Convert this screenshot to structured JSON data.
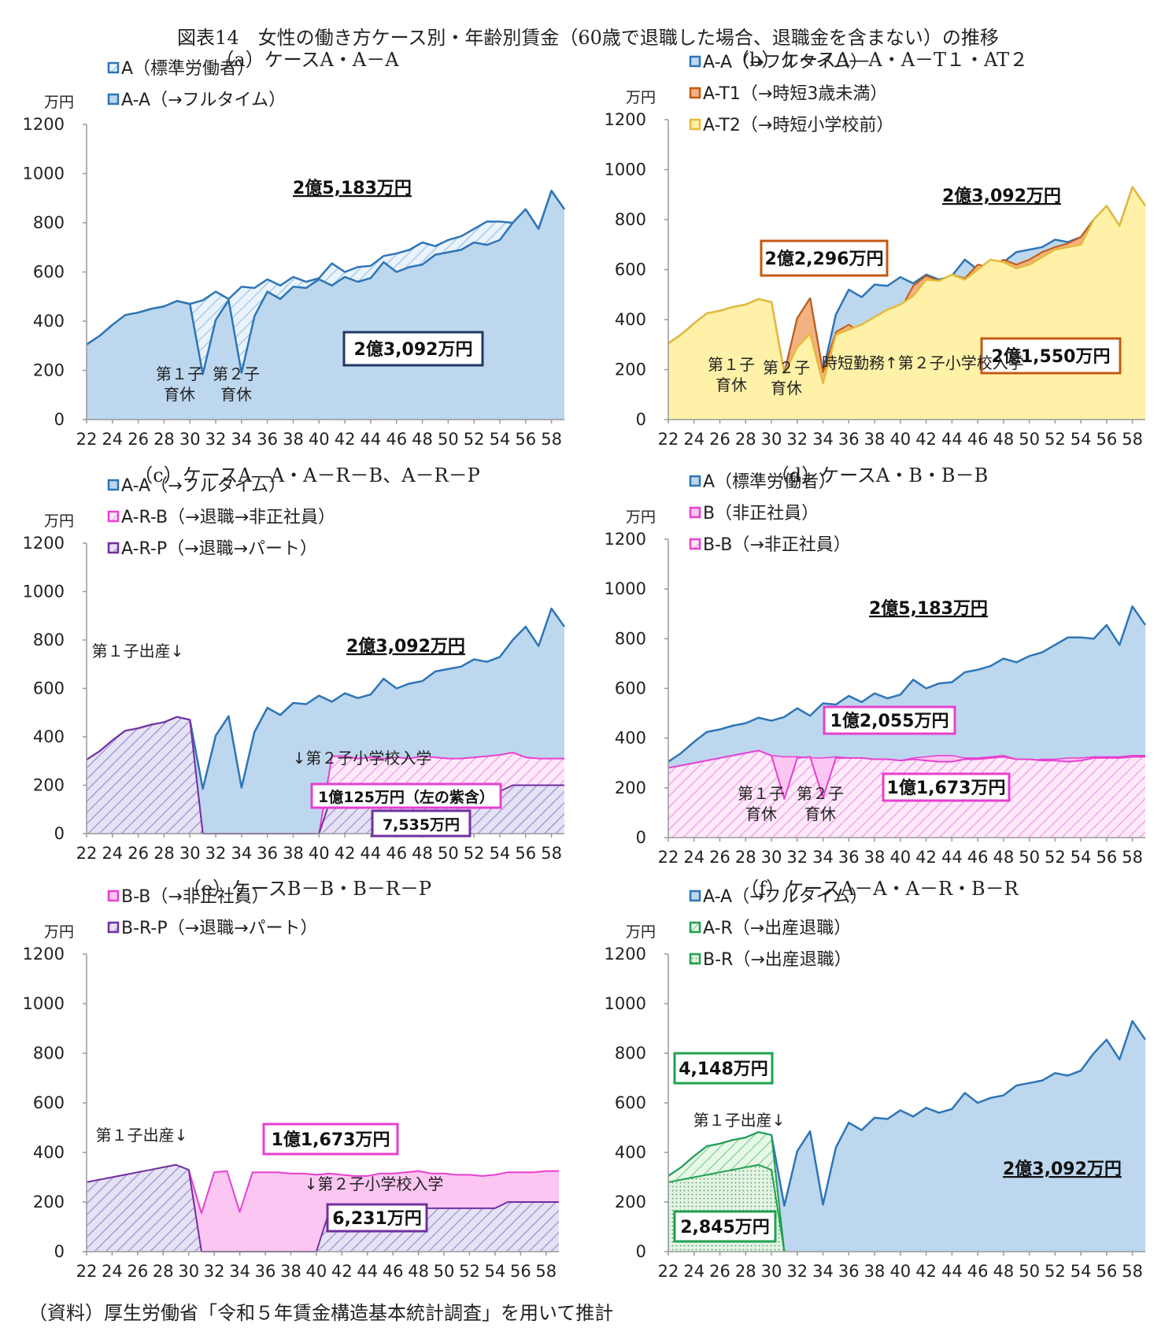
{
  "figure_title": "図表14　女性の働き方ケース別・年齢別賃金（60歳で退職した場合、退職金を含まない）の推移",
  "source": "（資料）厚生労働省「令和５年賃金構造基本統計調査」を用いて推計",
  "colors": {
    "blue": "#2E75B6",
    "light_blue": "#BDD7EE",
    "orange": "#F4B183",
    "orange_dark": "#C55A11",
    "yellow": "#FFF2A8",
    "yellow_line": "#E6B93C",
    "magenta": "#E83FD0",
    "pink": "#FBC6F2",
    "purple": "#7030A0",
    "lavender": "#C9C3E6",
    "green": "#21A050",
    "light_green": "#C8EEC8",
    "navy": "#1F3864"
  },
  "chart_data": [
    {
      "panel_title": "（a）ケースA・A－A",
      "type": "area",
      "unit_label": "万円",
      "ylim": [
        0,
        1200
      ],
      "yticks": [
        0,
        200,
        400,
        600,
        800,
        1000,
        1200
      ],
      "x": [
        22,
        23,
        24,
        25,
        26,
        27,
        28,
        29,
        30,
        31,
        32,
        33,
        34,
        35,
        36,
        37,
        38,
        39,
        40,
        41,
        42,
        43,
        44,
        45,
        46,
        47,
        48,
        49,
        50,
        51,
        52,
        53,
        54,
        55,
        56,
        57,
        58,
        59
      ],
      "xticks": [
        22,
        24,
        26,
        28,
        30,
        32,
        34,
        36,
        38,
        40,
        42,
        44,
        46,
        48,
        50,
        52,
        54,
        56,
        58
      ],
      "legend": [
        "A（標準労働者）",
        "A-A（→フルタイム）"
      ],
      "series": [
        {
          "name": "A（標準労働者）",
          "values": [
            305,
            340,
            385,
            425,
            435,
            450,
            460,
            482,
            470,
            485,
            520,
            490,
            540,
            535,
            570,
            545,
            580,
            560,
            575,
            635,
            600,
            620,
            625,
            665,
            675,
            690,
            720,
            705,
            730,
            745,
            775,
            805,
            805,
            800,
            855,
            775,
            930,
            855
          ]
        },
        {
          "name": "A-A（→フルタイム）",
          "values": [
            305,
            340,
            385,
            425,
            435,
            450,
            460,
            482,
            470,
            185,
            405,
            485,
            190,
            420,
            520,
            490,
            540,
            535,
            570,
            545,
            580,
            560,
            575,
            640,
            600,
            620,
            630,
            670,
            680,
            690,
            720,
            710,
            730,
            800,
            855,
            775,
            930,
            855
          ]
        }
      ],
      "annotations": [
        "2億5,183万円",
        "2億3,092万円",
        "第１子",
        "育休",
        "第２子",
        "育休"
      ]
    },
    {
      "panel_title": "（b）ケースA―A・A－T１・AT２",
      "type": "area",
      "unit_label": "万円",
      "ylim": [
        0,
        1200
      ],
      "yticks": [
        0,
        200,
        400,
        600,
        800,
        1000,
        1200
      ],
      "x": [
        22,
        23,
        24,
        25,
        26,
        27,
        28,
        29,
        30,
        31,
        32,
        33,
        34,
        35,
        36,
        37,
        38,
        39,
        40,
        41,
        42,
        43,
        44,
        45,
        46,
        47,
        48,
        49,
        50,
        51,
        52,
        53,
        54,
        55,
        56,
        57,
        58,
        59
      ],
      "xticks": [
        22,
        24,
        26,
        28,
        30,
        32,
        34,
        36,
        38,
        40,
        42,
        44,
        46,
        48,
        50,
        52,
        54,
        56,
        58
      ],
      "legend": [
        "A-A（→フルタイム）",
        "A-T1（→時短3歳未満）",
        "A-T2（→時短小学校前）"
      ],
      "series": [
        {
          "name": "A-A（→フルタイム）",
          "values": [
            305,
            340,
            385,
            425,
            435,
            450,
            460,
            482,
            470,
            185,
            405,
            485,
            190,
            420,
            520,
            490,
            540,
            535,
            570,
            545,
            580,
            560,
            575,
            640,
            600,
            620,
            630,
            670,
            680,
            690,
            720,
            710,
            730,
            800,
            855,
            775,
            930,
            855
          ]
        },
        {
          "name": "A-T1（→時短3歳未満）",
          "values": [
            305,
            340,
            385,
            425,
            435,
            450,
            460,
            482,
            470,
            185,
            405,
            485,
            190,
            350,
            380,
            345,
            375,
            395,
            440,
            535,
            575,
            555,
            580,
            565,
            620,
            610,
            640,
            620,
            640,
            670,
            690,
            705,
            730,
            800,
            855,
            775,
            930,
            855
          ]
        },
        {
          "name": "A-T2（→時短小学校前）",
          "values": [
            305,
            340,
            385,
            425,
            435,
            450,
            460,
            482,
            470,
            185,
            290,
            345,
            145,
            340,
            360,
            380,
            410,
            440,
            460,
            495,
            560,
            555,
            580,
            560,
            600,
            640,
            630,
            605,
            620,
            650,
            680,
            690,
            700,
            800,
            855,
            775,
            930,
            855
          ]
        }
      ],
      "annotations": [
        "2億3,092万円",
        "2億2,296万円",
        "2億1,550万円",
        "第１子",
        "育休",
        "第２子",
        "育休",
        "時短勤務↑第２子小学校入学"
      ]
    },
    {
      "panel_title": "（c）ケースA―A・A－R－B、A－R－P",
      "type": "area",
      "unit_label": "万円",
      "ylim": [
        0,
        1200
      ],
      "yticks": [
        0,
        200,
        400,
        600,
        800,
        1000,
        1200
      ],
      "x": [
        22,
        23,
        24,
        25,
        26,
        27,
        28,
        29,
        30,
        31,
        32,
        33,
        34,
        35,
        36,
        37,
        38,
        39,
        40,
        41,
        42,
        43,
        44,
        45,
        46,
        47,
        48,
        49,
        50,
        51,
        52,
        53,
        54,
        55,
        56,
        57,
        58,
        59
      ],
      "xticks": [
        22,
        24,
        26,
        28,
        30,
        32,
        34,
        36,
        38,
        40,
        42,
        44,
        46,
        48,
        50,
        52,
        54,
        56,
        58
      ],
      "legend": [
        "A-A（→フルタイム）",
        "A-R-B（→退職→非正社員）",
        "A-R-P（→退職→パート）"
      ],
      "series": [
        {
          "name": "A-A（→フルタイム）",
          "values": [
            305,
            340,
            385,
            425,
            435,
            450,
            460,
            482,
            470,
            185,
            405,
            485,
            190,
            420,
            520,
            490,
            540,
            535,
            570,
            545,
            580,
            560,
            575,
            640,
            600,
            620,
            630,
            670,
            680,
            690,
            720,
            710,
            730,
            800,
            855,
            775,
            930,
            855
          ]
        },
        {
          "name": "A-R-B（→退職→非正社員）",
          "values": [
            305,
            340,
            385,
            425,
            435,
            450,
            460,
            482,
            470,
            0,
            0,
            0,
            0,
            0,
            0,
            0,
            0,
            0,
            0,
            320,
            320,
            310,
            315,
            310,
            315,
            310,
            320,
            315,
            310,
            310,
            315,
            320,
            325,
            335,
            315,
            310,
            310,
            310
          ]
        },
        {
          "name": "A-R-P（→退職→パート）",
          "values": [
            305,
            340,
            385,
            425,
            435,
            450,
            460,
            482,
            470,
            0,
            0,
            0,
            0,
            0,
            0,
            0,
            0,
            0,
            0,
            160,
            160,
            160,
            160,
            175,
            175,
            175,
            175,
            175,
            175,
            175,
            175,
            175,
            175,
            200,
            200,
            200,
            200,
            200
          ]
        }
      ],
      "annotations": [
        "2億3,092万円",
        "第１子出産↓",
        "↓第２子小学校入学",
        "1億125万円（左の紫含）",
        "7,535万円"
      ]
    },
    {
      "panel_title": "（d）ケースA・B・B－B",
      "type": "area",
      "unit_label": "万円",
      "ylim": [
        0,
        1200
      ],
      "yticks": [
        0,
        200,
        400,
        600,
        800,
        1000,
        1200
      ],
      "x": [
        22,
        23,
        24,
        25,
        26,
        27,
        28,
        29,
        30,
        31,
        32,
        33,
        34,
        35,
        36,
        37,
        38,
        39,
        40,
        41,
        42,
        43,
        44,
        45,
        46,
        47,
        48,
        49,
        50,
        51,
        52,
        53,
        54,
        55,
        56,
        57,
        58,
        59
      ],
      "xticks": [
        22,
        24,
        26,
        28,
        30,
        32,
        34,
        36,
        38,
        40,
        42,
        44,
        46,
        48,
        50,
        52,
        54,
        56,
        58
      ],
      "legend": [
        "A（標準労働者）",
        "B（非正社員）",
        "B-B（→非正社員）"
      ],
      "series": [
        {
          "name": "A（標準労働者）",
          "values": [
            305,
            340,
            385,
            425,
            435,
            450,
            460,
            482,
            470,
            485,
            520,
            490,
            540,
            535,
            570,
            545,
            580,
            560,
            575,
            635,
            600,
            620,
            625,
            665,
            675,
            690,
            720,
            705,
            730,
            745,
            775,
            805,
            805,
            800,
            855,
            775,
            930,
            855
          ]
        },
        {
          "name": "B（非正社員）",
          "values": [
            280,
            290,
            300,
            310,
            320,
            330,
            340,
            350,
            330,
            325,
            325,
            320,
            320,
            325,
            320,
            320,
            315,
            315,
            310,
            320,
            325,
            330,
            330,
            320,
            320,
            325,
            330,
            315,
            310,
            315,
            315,
            320,
            320,
            325,
            325,
            325,
            330,
            330
          ]
        },
        {
          "name": "B-B（→非正社員）",
          "values": [
            280,
            290,
            300,
            310,
            320,
            330,
            340,
            350,
            330,
            155,
            320,
            325,
            160,
            320,
            320,
            320,
            315,
            315,
            310,
            315,
            310,
            305,
            305,
            315,
            315,
            320,
            325,
            315,
            315,
            310,
            310,
            305,
            310,
            320,
            320,
            320,
            325,
            325
          ]
        }
      ],
      "annotations": [
        "2億5,183万円",
        "1億2,055万円",
        "1億1,673万円",
        "第１子",
        "育休",
        "第２子",
        "育休"
      ]
    },
    {
      "panel_title": "（e）ケースB－B・B－R－P",
      "type": "area",
      "unit_label": "万円",
      "ylim": [
        0,
        1200
      ],
      "yticks": [
        0,
        200,
        400,
        600,
        800,
        1000,
        1200
      ],
      "x": [
        22,
        23,
        24,
        25,
        26,
        27,
        28,
        29,
        30,
        31,
        32,
        33,
        34,
        35,
        36,
        37,
        38,
        39,
        40,
        41,
        42,
        43,
        44,
        45,
        46,
        47,
        48,
        49,
        50,
        51,
        52,
        53,
        54,
        55,
        56,
        57,
        58,
        59
      ],
      "xticks": [
        22,
        24,
        26,
        28,
        30,
        32,
        34,
        36,
        38,
        40,
        42,
        44,
        46,
        48,
        50,
        52,
        54,
        56,
        58
      ],
      "legend": [
        "B-B（→非正社員）",
        "B-R-P（→退職→パート）"
      ],
      "series": [
        {
          "name": "B-B（→非正社員）",
          "values": [
            280,
            290,
            300,
            310,
            320,
            330,
            340,
            350,
            330,
            155,
            320,
            325,
            160,
            320,
            320,
            320,
            315,
            315,
            310,
            315,
            310,
            305,
            305,
            315,
            315,
            320,
            325,
            315,
            315,
            310,
            310,
            305,
            310,
            320,
            320,
            320,
            325,
            325
          ]
        },
        {
          "name": "B-R-P（→退職→パート）",
          "values": [
            280,
            290,
            300,
            310,
            320,
            330,
            340,
            350,
            330,
            0,
            0,
            0,
            0,
            0,
            0,
            0,
            0,
            0,
            0,
            160,
            160,
            160,
            160,
            175,
            175,
            175,
            175,
            175,
            175,
            175,
            175,
            175,
            175,
            200,
            200,
            200,
            200,
            200
          ]
        }
      ],
      "annotations": [
        "第１子出産↓",
        "1億1,673万円",
        "↓第２子小学校入学",
        "6,231万円"
      ]
    },
    {
      "panel_title": "（f）ケースA－A・A－R・B－R",
      "type": "area",
      "unit_label": "万円",
      "ylim": [
        0,
        1200
      ],
      "yticks": [
        0,
        200,
        400,
        600,
        800,
        1000,
        1200
      ],
      "x": [
        22,
        23,
        24,
        25,
        26,
        27,
        28,
        29,
        30,
        31,
        32,
        33,
        34,
        35,
        36,
        37,
        38,
        39,
        40,
        41,
        42,
        43,
        44,
        45,
        46,
        47,
        48,
        49,
        50,
        51,
        52,
        53,
        54,
        55,
        56,
        57,
        58,
        59
      ],
      "xticks": [
        22,
        24,
        26,
        28,
        30,
        32,
        34,
        36,
        38,
        40,
        42,
        44,
        46,
        48,
        50,
        52,
        54,
        56,
        58
      ],
      "legend": [
        "A-A（→フルタイム）",
        "A-R（→出産退職）",
        "B-R（→出産退職）"
      ],
      "series": [
        {
          "name": "A-A（→フルタイム）",
          "values": [
            305,
            340,
            385,
            425,
            435,
            450,
            460,
            482,
            470,
            185,
            405,
            485,
            190,
            420,
            520,
            490,
            540,
            535,
            570,
            545,
            580,
            560,
            575,
            640,
            600,
            620,
            630,
            670,
            680,
            690,
            720,
            710,
            730,
            800,
            855,
            775,
            930,
            855
          ]
        },
        {
          "name": "A-R（→出産退職）",
          "values": [
            305,
            340,
            385,
            425,
            435,
            450,
            460,
            482,
            470,
            0,
            null,
            null,
            null,
            null,
            null,
            null,
            null,
            null,
            null,
            null,
            null,
            null,
            null,
            null,
            null,
            null,
            null,
            null,
            null,
            null,
            null,
            null,
            null,
            null,
            null,
            null,
            null,
            null
          ]
        },
        {
          "name": "B-R（→出産退職）",
          "values": [
            280,
            290,
            300,
            310,
            320,
            330,
            340,
            350,
            330,
            0,
            null,
            null,
            null,
            null,
            null,
            null,
            null,
            null,
            null,
            null,
            null,
            null,
            null,
            null,
            null,
            null,
            null,
            null,
            null,
            null,
            null,
            null,
            null,
            null,
            null,
            null,
            null,
            null
          ]
        }
      ],
      "annotations": [
        "4,148万円",
        "第１子出産↓",
        "2,845万円",
        "2億3,092万円"
      ]
    }
  ]
}
